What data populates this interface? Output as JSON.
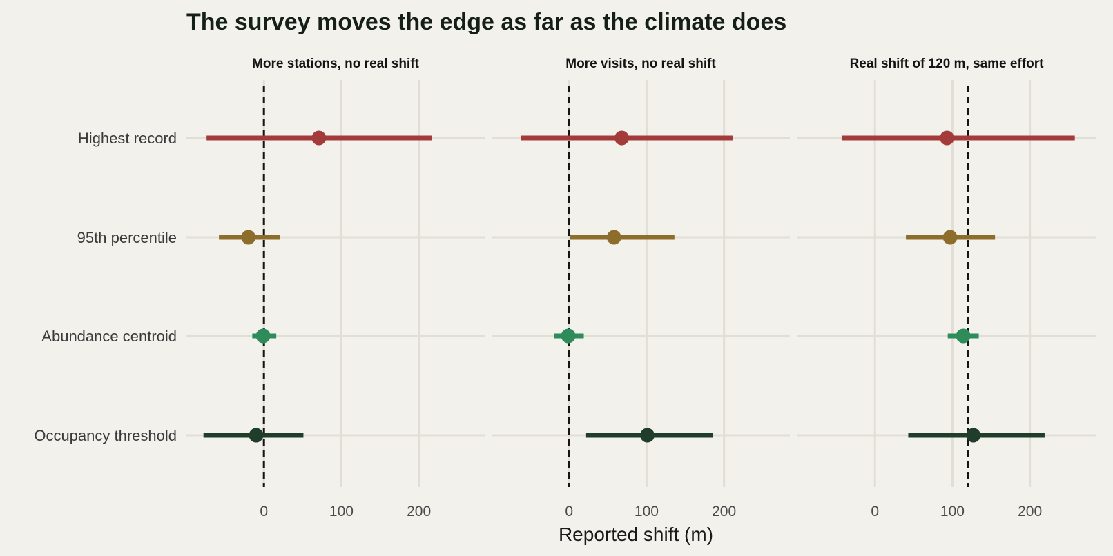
{
  "chart_data": {
    "type": "scatter",
    "title": "The survey moves the edge as far as the climate does",
    "xlabel": "Reported shift (m)",
    "ylabel": "",
    "xlim": [
      -100,
      285
    ],
    "xticks": [
      0,
      100,
      200
    ],
    "grid": true,
    "legend": "none",
    "categories": [
      "Highest record",
      "95th percentile",
      "Abundance centroid",
      "Occupancy threshold"
    ],
    "colors": {
      "Highest record": "#a33b3b",
      "95th percentile": "#8c6d2c",
      "Abundance centroid": "#2e8b5a",
      "Occupancy threshold": "#1f3d2a"
    },
    "panels": [
      {
        "title": "More stations, no real shift",
        "reference": 0,
        "points": [
          {
            "label": "Highest record",
            "estimate": 71,
            "low": -74,
            "high": 217
          },
          {
            "label": "95th percentile",
            "estimate": -20,
            "low": -58,
            "high": 21
          },
          {
            "label": "Abundance centroid",
            "estimate": -1,
            "low": -15,
            "high": 16
          },
          {
            "label": "Occupancy threshold",
            "estimate": -10,
            "low": -78,
            "high": 51
          }
        ]
      },
      {
        "title": "More visits, no real shift",
        "reference": 0,
        "points": [
          {
            "label": "Highest record",
            "estimate": 68,
            "low": -62,
            "high": 211
          },
          {
            "label": "95th percentile",
            "estimate": 58,
            "low": 1,
            "high": 136
          },
          {
            "label": "Abundance centroid",
            "estimate": -1,
            "low": -19,
            "high": 19
          },
          {
            "label": "Occupancy threshold",
            "estimate": 101,
            "low": 22,
            "high": 186
          }
        ]
      },
      {
        "title": "Real shift of 120 m, same effort",
        "reference": 120,
        "points": [
          {
            "label": "Highest record",
            "estimate": 93,
            "low": -43,
            "high": 258
          },
          {
            "label": "95th percentile",
            "estimate": 97,
            "low": 40,
            "high": 155
          },
          {
            "label": "Abundance centroid",
            "estimate": 114,
            "low": 94,
            "high": 134
          },
          {
            "label": "Occupancy threshold",
            "estimate": 127,
            "low": 43,
            "high": 219
          }
        ]
      }
    ]
  }
}
